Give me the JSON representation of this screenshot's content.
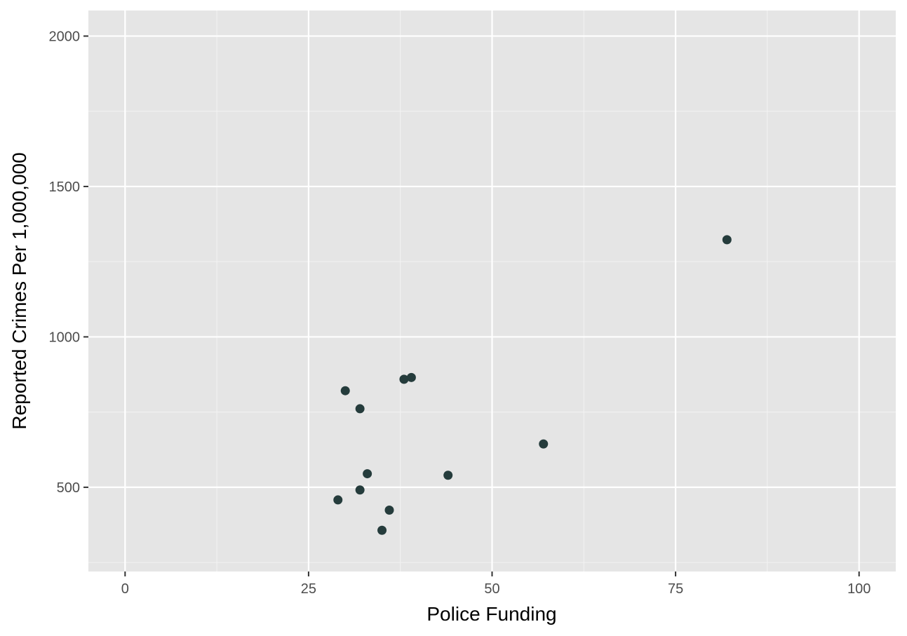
{
  "chart_data": {
    "type": "scatter",
    "title": "",
    "xlabel": "Police Funding",
    "ylabel": "Reported Crimes Per 1,000,000",
    "xlim": [
      -5,
      105
    ],
    "ylim": [
      220,
      2085
    ],
    "x_ticks": [
      0,
      25,
      50,
      75,
      100
    ],
    "x_tick_labels": [
      "0",
      "25",
      "50",
      "75",
      "100"
    ],
    "y_ticks": [
      500,
      1000,
      1500,
      2000
    ],
    "y_tick_labels": [
      "500",
      "1000",
      "1500",
      "2000"
    ],
    "grid": true,
    "points": [
      {
        "x": 29,
        "y": 458
      },
      {
        "x": 30,
        "y": 821
      },
      {
        "x": 32,
        "y": 761
      },
      {
        "x": 32,
        "y": 491
      },
      {
        "x": 33,
        "y": 545
      },
      {
        "x": 35,
        "y": 357
      },
      {
        "x": 36,
        "y": 424
      },
      {
        "x": 38,
        "y": 859
      },
      {
        "x": 39,
        "y": 865
      },
      {
        "x": 44,
        "y": 540
      },
      {
        "x": 57,
        "y": 644
      },
      {
        "x": 82,
        "y": 1323
      }
    ],
    "colors": {
      "panel": "#e5e5e5",
      "grid_major": "#ffffff",
      "grid_minor": "#f2f2f2",
      "point": "#253c3c",
      "tick": "#333333"
    }
  }
}
